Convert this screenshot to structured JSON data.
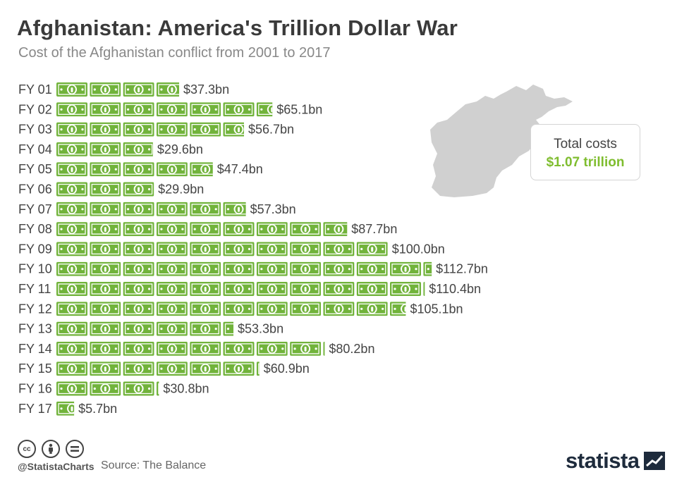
{
  "title": "Afghanistan: America's Trillion Dollar War",
  "subtitle": "Cost of the Afghanistan conflict from 2001 to 2017",
  "total_box": {
    "label": "Total costs",
    "value": "$1.07 trillion"
  },
  "footer": {
    "handle": "@StatistaCharts",
    "source": "Source: The Balance",
    "brand": "statista"
  },
  "colors": {
    "accent": "#7fbd2f",
    "bill": "#71b33b",
    "bill_dark": "#4f8a25",
    "map": "#d0d0d0",
    "title": "#3a3a3a"
  },
  "icons": [
    "cc-icon",
    "attribution-icon",
    "equals-icon",
    "statista-logo-icon",
    "afghanistan-map-icon",
    "dollar-bill-icon"
  ],
  "chart_data": {
    "type": "bar",
    "orientation": "horizontal",
    "unit_per_icon": "$10bn",
    "categories": [
      "FY 01",
      "FY 02",
      "FY 03",
      "FY 04",
      "FY 05",
      "FY 06",
      "FY 07",
      "FY 08",
      "FY 09",
      "FY 10",
      "FY 11",
      "FY 12",
      "FY 13",
      "FY 14",
      "FY 15",
      "FY 16",
      "FY 17"
    ],
    "values": [
      37.3,
      65.1,
      56.7,
      29.6,
      47.4,
      29.9,
      57.3,
      87.7,
      100.0,
      112.7,
      110.4,
      105.1,
      53.3,
      80.2,
      60.9,
      30.8,
      5.7
    ],
    "labels": [
      "$37.3bn",
      "$65.1bn",
      "$56.7bn",
      "$29.6bn",
      "$47.4bn",
      "$29.9bn",
      "$57.3bn",
      "$87.7bn",
      "$100.0bn",
      "$112.7bn",
      "$110.4bn",
      "$105.1bn",
      "$53.3bn",
      "$80.2bn",
      "$60.9bn",
      "$30.8bn",
      "$5.7bn"
    ]
  }
}
